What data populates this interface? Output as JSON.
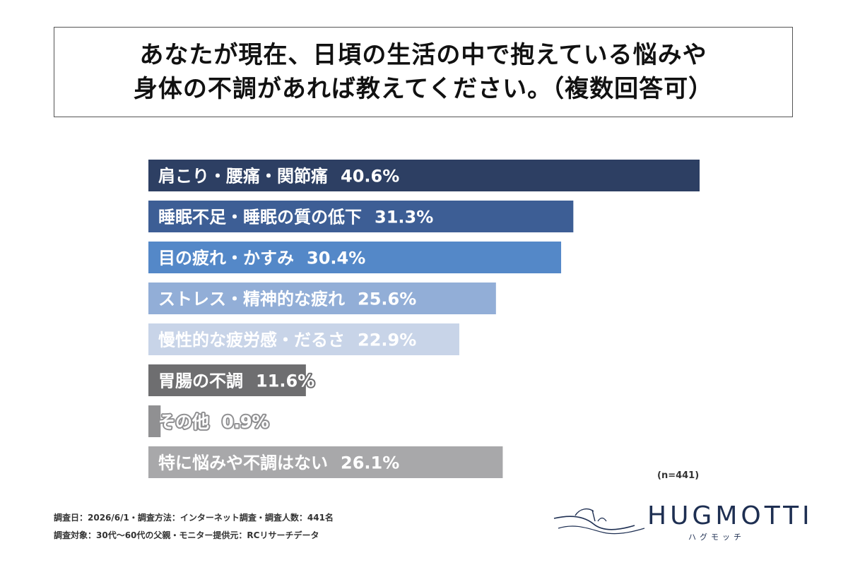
{
  "title": {
    "line1": "あなたが現在、日頃の生活の中で抱えている悩みや",
    "line2": "身体の不調があれば教えてください。（複数回答可）"
  },
  "chart_data": {
    "type": "bar",
    "orientation": "horizontal",
    "unit": "%",
    "categories": [
      "肩こり・腰痛・関節痛",
      "睡眠不足・睡眠の質の低下",
      "目の疲れ・かすみ",
      "ストレス・精神的な疲れ",
      "慢性的な疲労感・だるさ",
      "胃腸の不調",
      "その他",
      "特に悩みや不調はない"
    ],
    "values": [
      40.6,
      31.3,
      30.4,
      25.6,
      22.9,
      11.6,
      0.9,
      26.1
    ],
    "value_labels": [
      "40.6%",
      "31.3%",
      "30.4%",
      "25.6%",
      "22.9%",
      "11.6%",
      "0.9%",
      "26.1%"
    ],
    "colors": [
      "#2d3f63",
      "#3d5e95",
      "#5488c8",
      "#92aed7",
      "#c8d4e8",
      "#6e6e70",
      "#909092",
      "#a8a8aa"
    ],
    "xlim": [
      0,
      45
    ],
    "grid": false,
    "legend": "none"
  },
  "sample_size": "(n=441)",
  "footnotes": {
    "line1": "調査日：2026/6/1・調査方法：インターネット調査・調査人数：441名",
    "line2": "調査対象：30代〜60代の父親・モニター提供元：RCリサーチデータ"
  },
  "logo": {
    "text": "HUGMOTTI",
    "sub": "ハグモッチ",
    "color": "#1e2f52"
  }
}
